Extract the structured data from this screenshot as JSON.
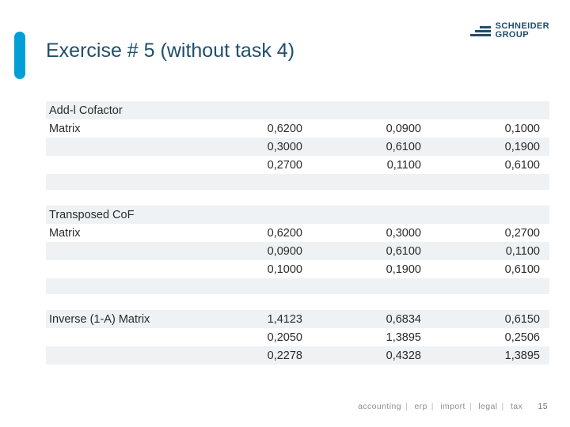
{
  "header": {
    "title": "Exercise # 5 (without task 4)",
    "logo_line1": "SCHNEIDER",
    "logo_line2": "GROUP"
  },
  "accent_color": "#00a0d6",
  "title_color": "#1f4e6e",
  "band_color": "#eef2f4",
  "sections": {
    "addl": {
      "label_line1": "Add-l Cofactor",
      "label_line2": "Matrix",
      "rows": [
        [
          "0,6200",
          "0,0900",
          "0,1000"
        ],
        [
          "0,3000",
          "0,6100",
          "0,1900"
        ],
        [
          "0,2700",
          "0,1100",
          "0,6100"
        ]
      ]
    },
    "transposed": {
      "label_line1": "Transposed CoF",
      "label_line2": "Matrix",
      "rows": [
        [
          "0,6200",
          "0,3000",
          "0,2700"
        ],
        [
          "0,0900",
          "0,6100",
          "0,1100"
        ],
        [
          "0,1000",
          "0,1900",
          "0,6100"
        ]
      ]
    },
    "inverse": {
      "label": "Inverse (1-A) Matrix",
      "rows": [
        [
          "1,4123",
          "0,6834",
          "0,6150"
        ],
        [
          "0,2050",
          "1,3895",
          "0,2506"
        ],
        [
          "0,2278",
          "0,4328",
          "1,3895"
        ]
      ]
    }
  },
  "footer": {
    "items": [
      "accounting",
      "erp",
      "import",
      "legal",
      "tax"
    ],
    "page_number": "15"
  }
}
